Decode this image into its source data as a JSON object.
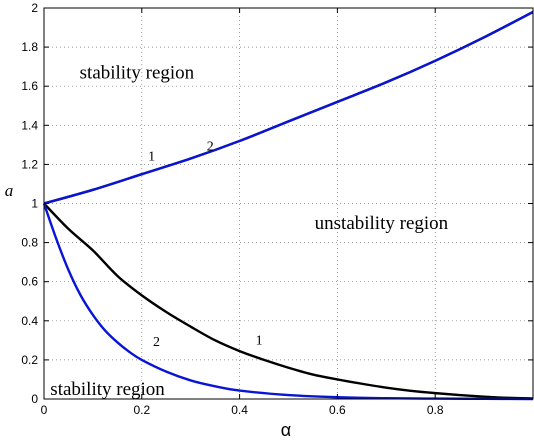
{
  "chart_data": {
    "type": "line",
    "xlabel": "α",
    "ylabel": "a",
    "xlim": [
      0,
      1
    ],
    "ylim": [
      0,
      2
    ],
    "x_ticks": [
      0,
      0.2,
      0.4,
      0.6,
      0.8
    ],
    "x_tick_labels": [
      "0",
      "0.2",
      "0.4",
      "0.6",
      "0.8"
    ],
    "y_ticks": [
      0,
      0.2,
      0.4,
      0.6,
      0.8,
      1,
      1.2,
      1.4,
      1.6,
      1.8,
      2
    ],
    "y_tick_labels": [
      "0",
      "0.2",
      "0.4",
      "0.6",
      "0.8",
      "1",
      "1.2",
      "1.4",
      "1.6",
      "1.8",
      "2"
    ],
    "grid": true,
    "series": [
      {
        "color": "#000000",
        "label": "1",
        "label_at": {
          "x": 0.22,
          "y": 1.22
        },
        "x": [
          0,
          0.1,
          0.2,
          0.3,
          0.4,
          0.5,
          0.6,
          0.7,
          0.8,
          0.9,
          1.0
        ],
        "y": [
          1.0,
          1.07,
          1.15,
          1.23,
          1.32,
          1.42,
          1.52,
          1.62,
          1.73,
          1.85,
          1.98
        ]
      },
      {
        "color": "#0a14d6",
        "label": "2",
        "label_at": {
          "x": 0.34,
          "y": 1.27
        },
        "x": [
          0,
          0.1,
          0.2,
          0.3,
          0.4,
          0.5,
          0.6,
          0.7,
          0.8,
          0.9,
          1.0
        ],
        "y": [
          1.0,
          1.07,
          1.15,
          1.23,
          1.32,
          1.42,
          1.52,
          1.62,
          1.73,
          1.85,
          1.98
        ]
      },
      {
        "color": "#000000",
        "label": "1",
        "label_at": {
          "x": 0.44,
          "y": 0.28
        },
        "x": [
          0,
          0.05,
          0.1,
          0.15,
          0.2,
          0.25,
          0.3,
          0.35,
          0.4,
          0.45,
          0.5,
          0.55,
          0.6,
          0.65,
          0.7,
          0.75,
          0.8,
          0.85,
          0.9,
          0.95,
          1.0
        ],
        "y": [
          1.0,
          0.87,
          0.76,
          0.63,
          0.53,
          0.445,
          0.37,
          0.3,
          0.245,
          0.2,
          0.16,
          0.125,
          0.1,
          0.078,
          0.058,
          0.042,
          0.03,
          0.02,
          0.012,
          0.006,
          0.003
        ]
      },
      {
        "color": "#0a14d6",
        "label": "2",
        "label_at": {
          "x": 0.23,
          "y": 0.27
        },
        "x": [
          0,
          0.025,
          0.05,
          0.075,
          0.1,
          0.125,
          0.15,
          0.175,
          0.2,
          0.25,
          0.3,
          0.35,
          0.4,
          0.5,
          0.6,
          0.7,
          0.8,
          0.9,
          1.0
        ],
        "y": [
          1.0,
          0.82,
          0.66,
          0.53,
          0.43,
          0.35,
          0.29,
          0.24,
          0.2,
          0.14,
          0.095,
          0.065,
          0.043,
          0.02,
          0.009,
          0.004,
          0.002,
          0.001,
          0.0
        ]
      }
    ],
    "annotations": [
      {
        "text": "stability region",
        "x": 0.19,
        "y": 1.67
      },
      {
        "text": "unstability region",
        "x": 0.69,
        "y": 0.9
      },
      {
        "text": "stability region",
        "x": 0.13,
        "y": 0.05
      }
    ]
  }
}
